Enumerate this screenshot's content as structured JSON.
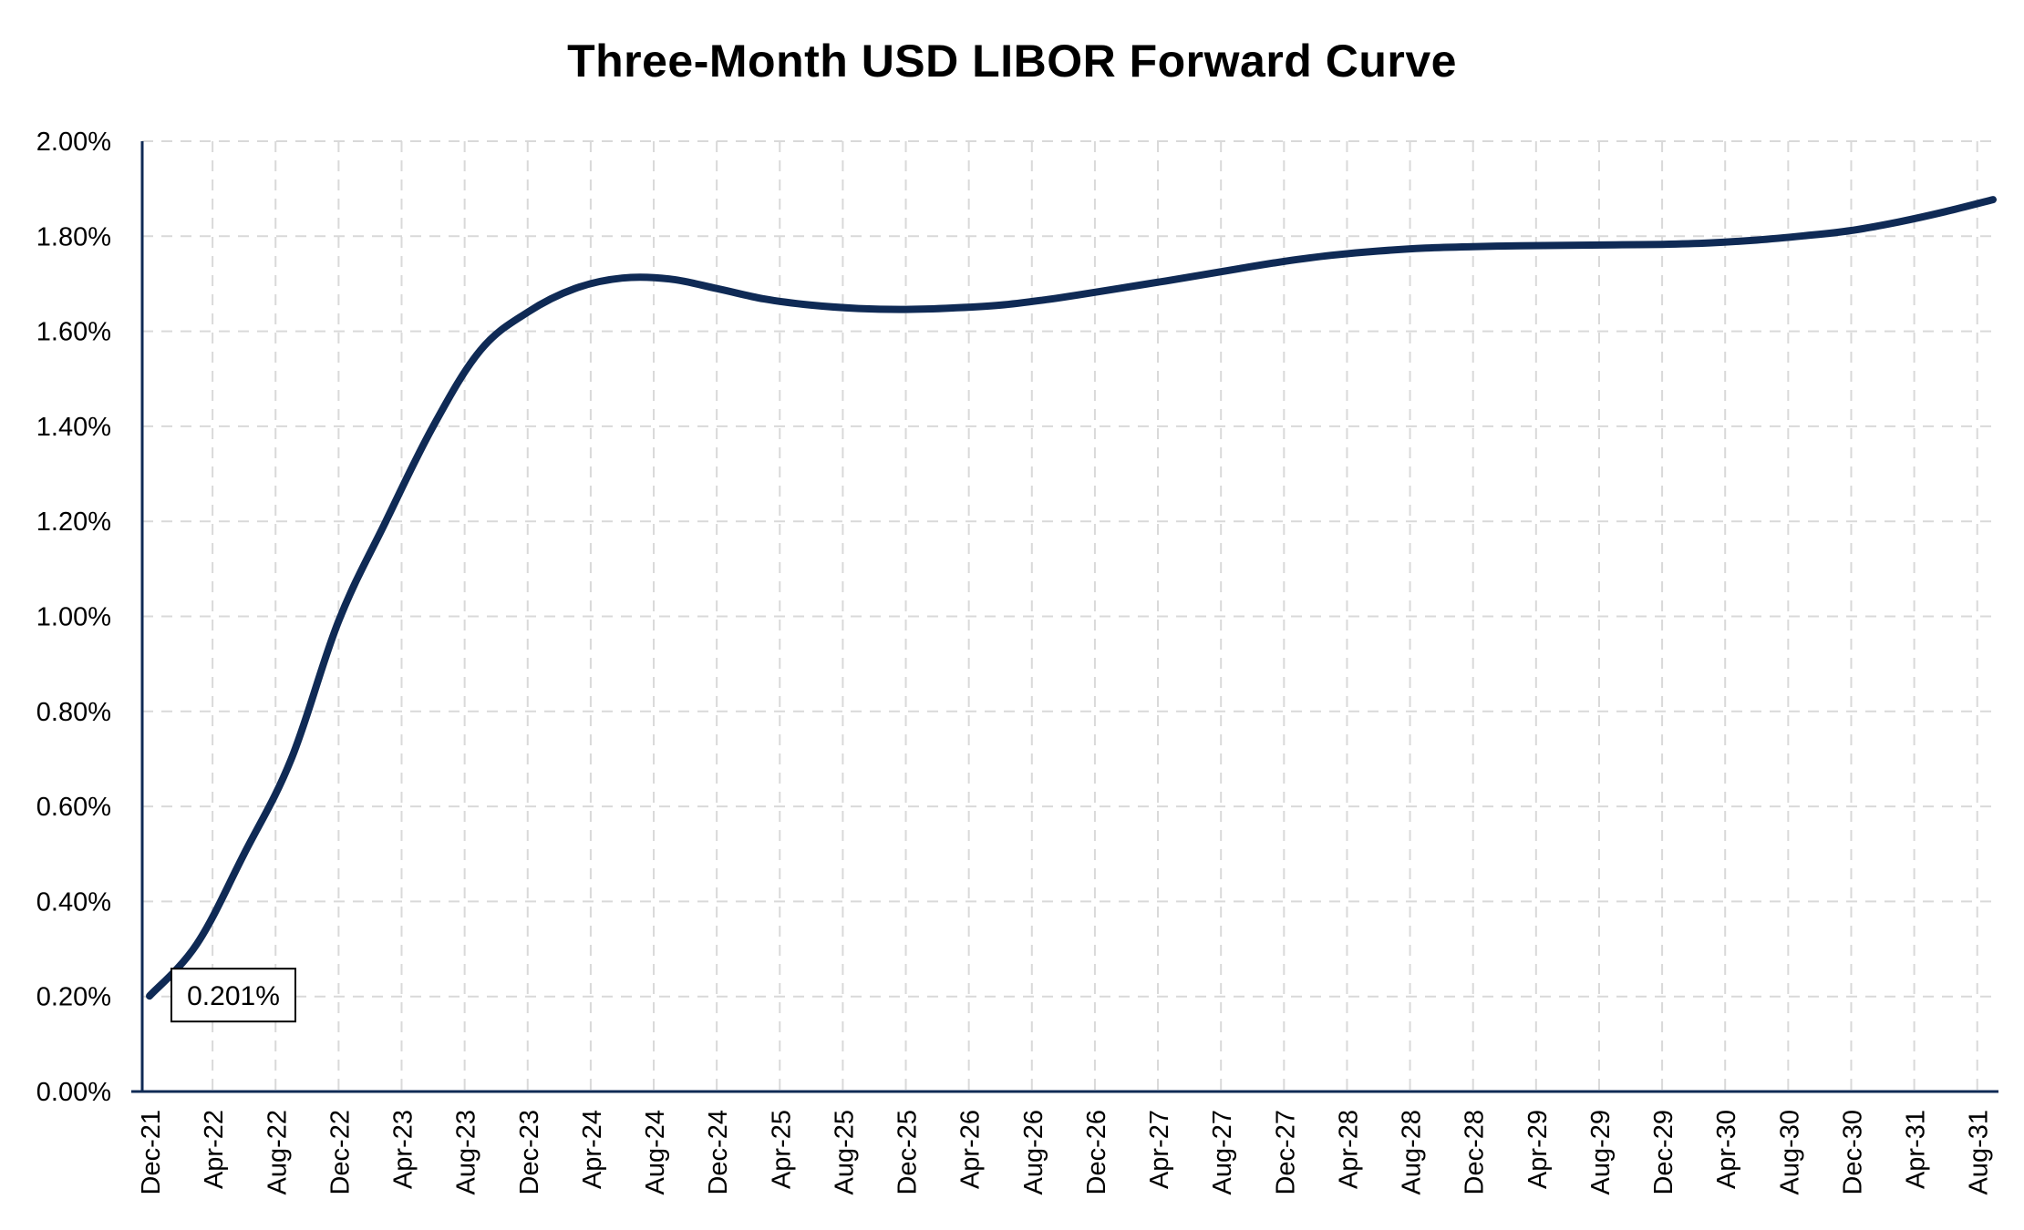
{
  "chart_data": {
    "type": "line",
    "title": "Three-Month USD LIBOR Forward Curve",
    "xlabel": "",
    "ylabel": "",
    "ylim": [
      0,
      0.02
    ],
    "yticks": [
      "0.00%",
      "0.20%",
      "0.40%",
      "0.60%",
      "0.80%",
      "1.00%",
      "1.20%",
      "1.40%",
      "1.60%",
      "1.80%",
      "2.00%"
    ],
    "x_tick_labels": [
      "Dec-21",
      "Apr-22",
      "Aug-22",
      "Dec-22",
      "Apr-23",
      "Aug-23",
      "Dec-23",
      "Apr-24",
      "Aug-24",
      "Dec-24",
      "Apr-25",
      "Aug-25",
      "Dec-25",
      "Apr-26",
      "Aug-26",
      "Dec-26",
      "Apr-27",
      "Aug-27",
      "Dec-27",
      "Apr-28",
      "Aug-28",
      "Dec-28",
      "Apr-29",
      "Aug-29",
      "Dec-29",
      "Apr-30",
      "Aug-30",
      "Dec-30",
      "Apr-31",
      "Aug-31"
    ],
    "grid": true,
    "legend": "none",
    "line_color": "#0f2a55",
    "series": [
      {
        "x": [
          "Dec-21",
          "Mar-22",
          "Jun-22",
          "Sep-22",
          "Dec-22",
          "Mar-23",
          "Jun-23",
          "Sep-23",
          "Dec-23",
          "Mar-24",
          "Jun-24",
          "Sep-24",
          "Dec-24",
          "Mar-25",
          "Jun-25",
          "Sep-25",
          "Dec-25",
          "Mar-26",
          "Jun-26",
          "Sep-26",
          "Dec-26",
          "Mar-27",
          "Jun-27",
          "Sep-27",
          "Dec-27",
          "Mar-28",
          "Jun-28",
          "Sep-28",
          "Dec-28",
          "Mar-29",
          "Jun-29",
          "Sep-29",
          "Dec-29",
          "Mar-30",
          "Jun-30",
          "Sep-30",
          "Dec-30",
          "Mar-31",
          "Jun-31",
          "Sep-31"
        ],
        "values": [
          0.00201,
          0.0031,
          0.005,
          0.007,
          0.0099,
          0.012,
          0.014,
          0.0156,
          0.0164,
          0.0169,
          0.01712,
          0.0171,
          0.0169,
          0.01668,
          0.01655,
          0.01648,
          0.01646,
          0.01649,
          0.01655,
          0.01667,
          0.01682,
          0.01698,
          0.01714,
          0.01731,
          0.01747,
          0.0176,
          0.01769,
          0.01775,
          0.01778,
          0.0178,
          0.01781,
          0.01782,
          0.01783,
          0.01786,
          0.01792,
          0.01801,
          0.01812,
          0.0183,
          0.01852,
          0.01877
        ]
      }
    ],
    "annotations": [
      {
        "text": "0.201%",
        "x": "Dec-21",
        "y": 0.00201
      }
    ]
  }
}
